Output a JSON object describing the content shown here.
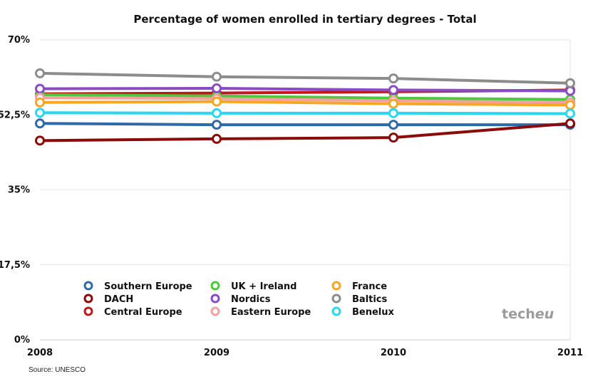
{
  "chart_data": {
    "type": "line",
    "title": "Percentage of women enrolled in tertiary degrees - Total",
    "x": [
      "2008",
      "2009",
      "2010",
      "2011"
    ],
    "y_ticks": [
      "0%",
      "17,5%",
      "35%",
      "52,5%",
      "70%"
    ],
    "ylim": [
      0,
      70
    ],
    "grid": true,
    "legend_position": "bottom-left",
    "series": [
      {
        "name": "Southern Europe",
        "color": "#2e6aa8",
        "values": [
          50.5,
          50.2,
          50.2,
          50.2
        ]
      },
      {
        "name": "DACH",
        "color": "#8b0a0a",
        "values": [
          46.5,
          46.9,
          47.2,
          50.5
        ]
      },
      {
        "name": "Central Europe",
        "color": "#c01818",
        "values": [
          57.4,
          57.6,
          57.9,
          58.3
        ]
      },
      {
        "name": "UK + Ireland",
        "color": "#4cc93c",
        "values": [
          57.2,
          56.9,
          56.4,
          56.1
        ]
      },
      {
        "name": "Nordics",
        "color": "#8a4cc4",
        "values": [
          58.6,
          58.7,
          58.3,
          58.1
        ]
      },
      {
        "name": "Eastern Europe",
        "color": "#f5a0a0",
        "values": [
          56.5,
          56.3,
          55.8,
          55.4
        ]
      },
      {
        "name": "France",
        "color": "#f5a623",
        "values": [
          55.4,
          55.6,
          55.1,
          54.8
        ]
      },
      {
        "name": "Baltics",
        "color": "#8c8c8c",
        "values": [
          62.2,
          61.4,
          61.0,
          59.9
        ]
      },
      {
        "name": "Benelux",
        "color": "#2bd7ee",
        "values": [
          53.0,
          52.9,
          52.9,
          52.8
        ]
      }
    ],
    "source": "Source: UNESCO"
  },
  "logo": {
    "text_main": "tech",
    "text_accent": "eu"
  }
}
